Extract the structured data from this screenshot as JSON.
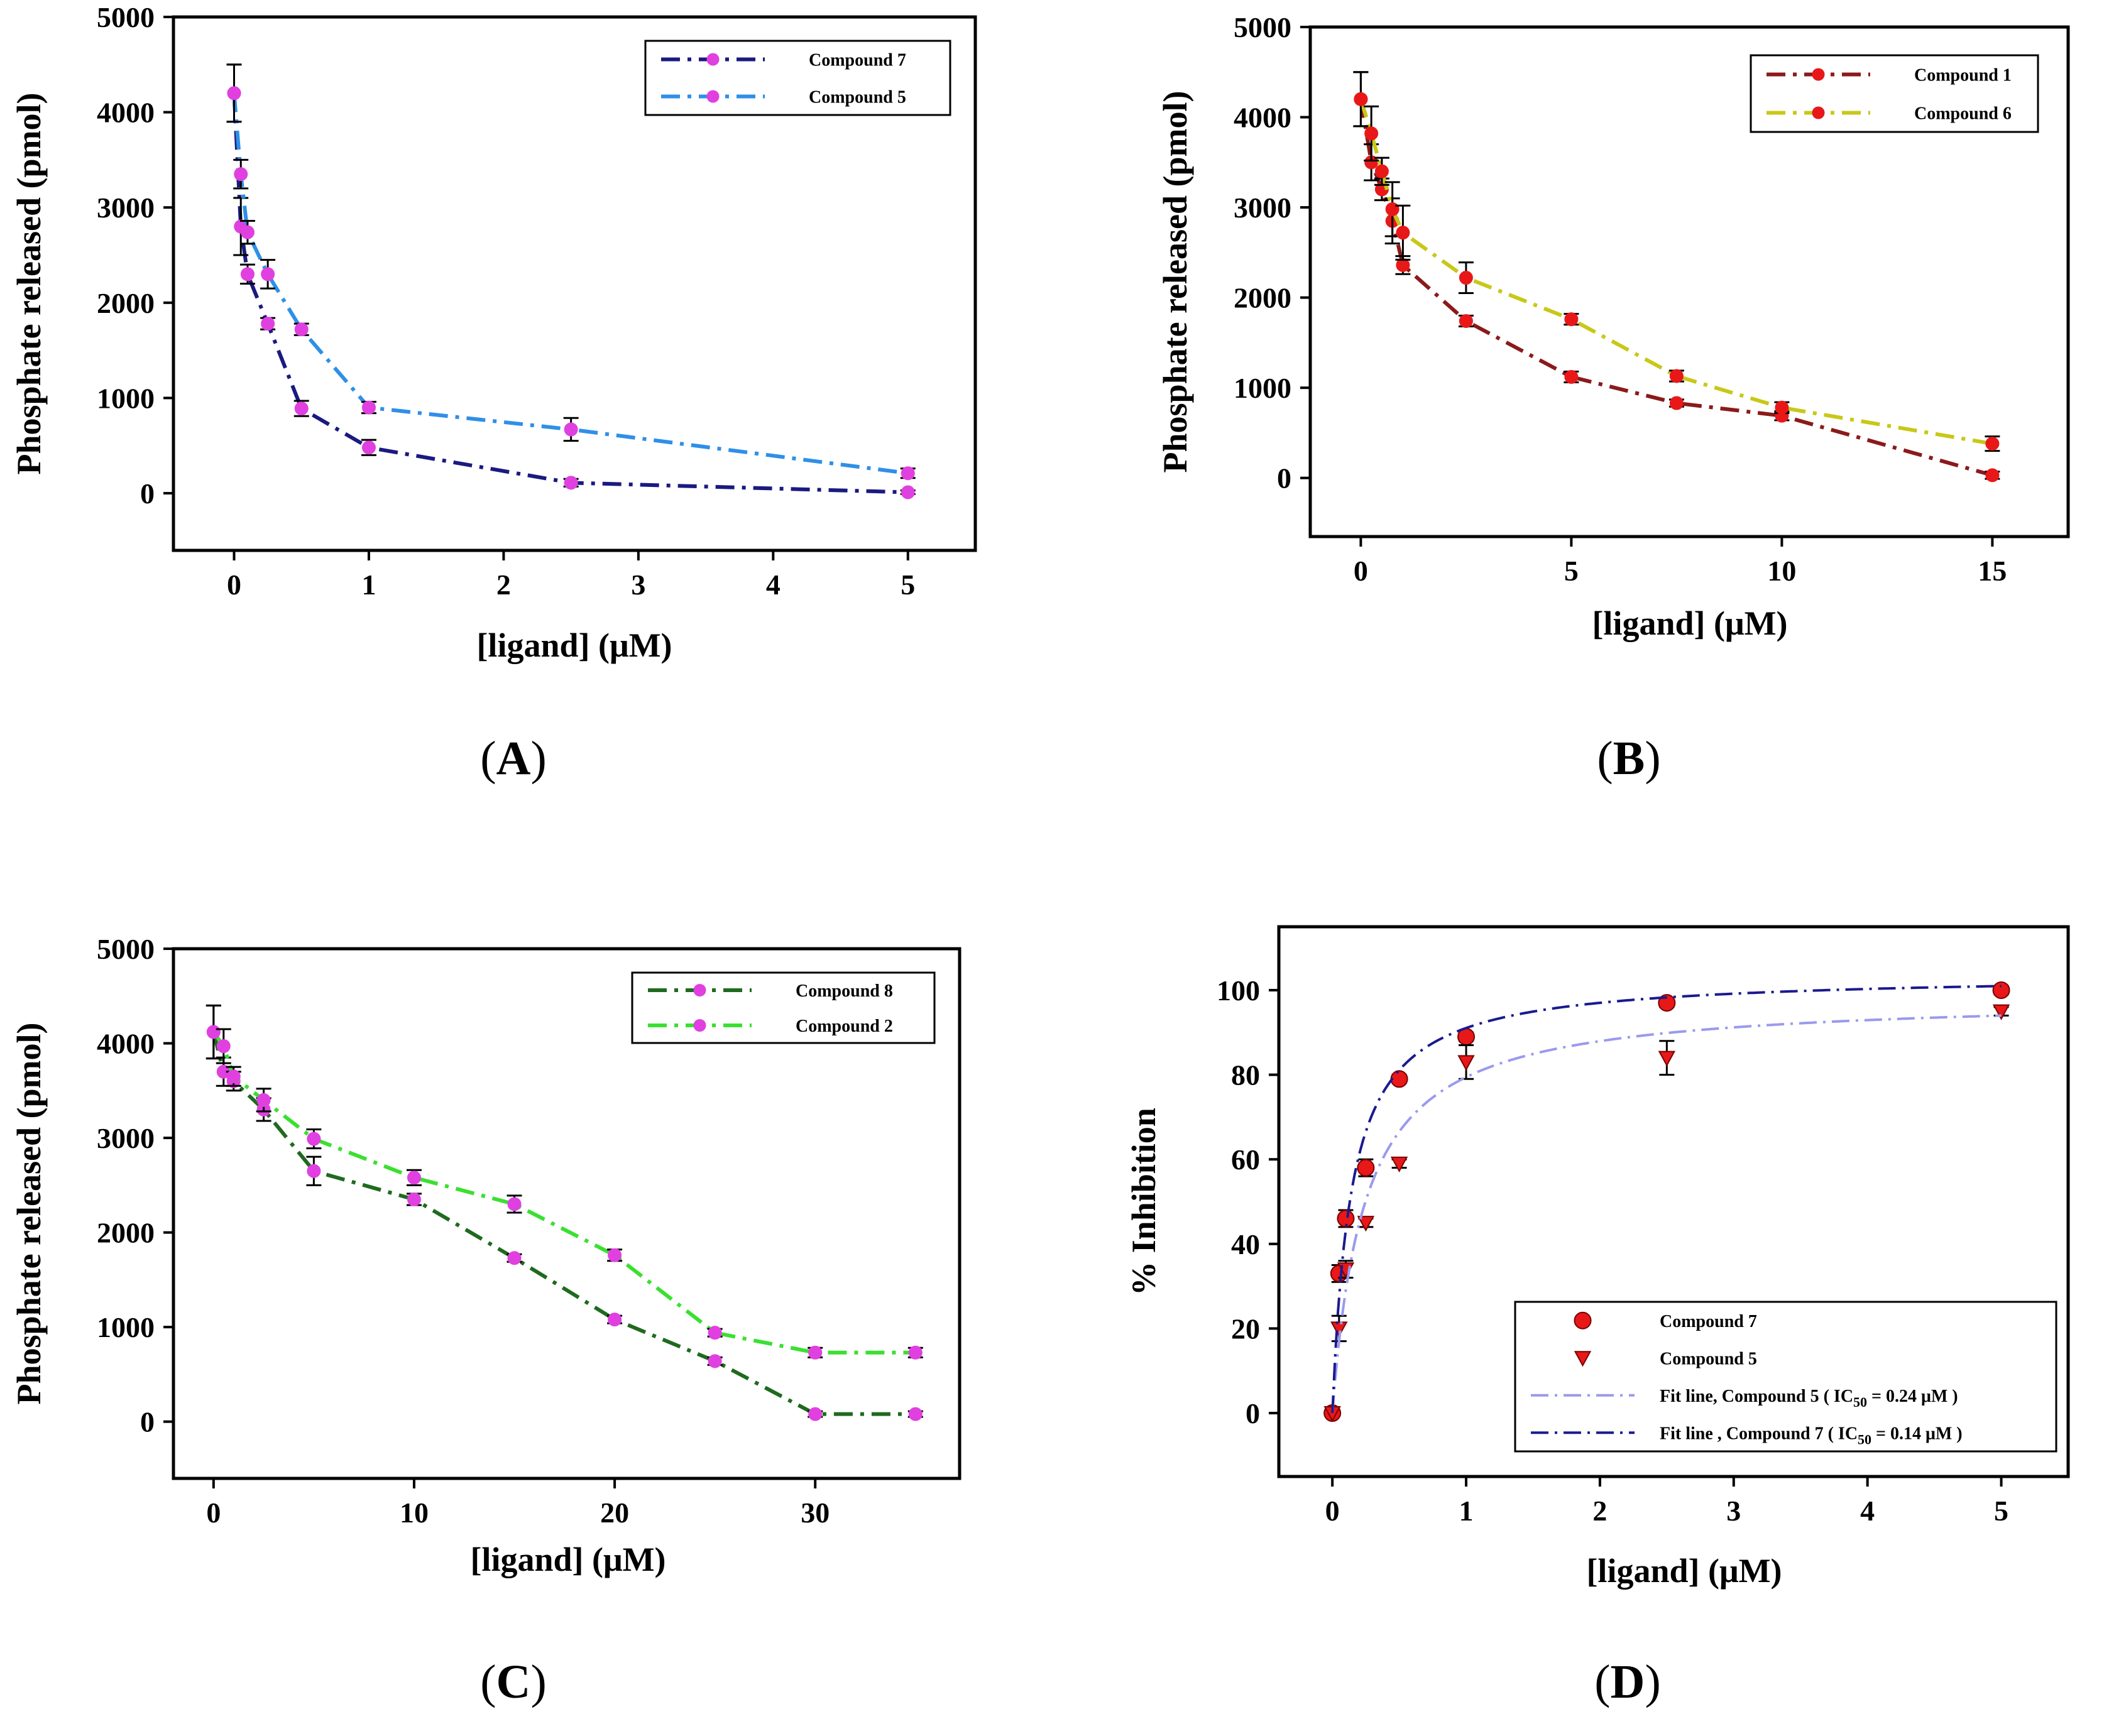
{
  "chart_data": [
    {
      "id": "A",
      "panel_label": "A",
      "type": "line",
      "xlabel": "[ligand] (μM)",
      "ylabel": "Phosphate released (pmol)",
      "xlim": [
        -0.45,
        5.5
      ],
      "ylim": [
        -600,
        5000
      ],
      "xticks": [
        0,
        1,
        2,
        3,
        4,
        5
      ],
      "yticks": [
        0,
        1000,
        2000,
        3000,
        4000,
        5000
      ],
      "legend_position": "top-right",
      "series": [
        {
          "name": "Compound 7",
          "color": "#1a1a80",
          "marker": "circle",
          "marker_color": "#e040e0",
          "x": [
            0,
            0.05,
            0.1,
            0.25,
            0.5,
            1,
            2.5,
            5
          ],
          "y": [
            4200,
            2800,
            2300,
            1780,
            890,
            480,
            110,
            10
          ],
          "err": [
            300,
            300,
            100,
            60,
            80,
            80,
            40,
            20
          ]
        },
        {
          "name": "Compound 5",
          "color": "#2f8fe8",
          "marker": "circle",
          "marker_color": "#e040e0",
          "x": [
            0,
            0.05,
            0.1,
            0.25,
            0.5,
            1,
            2.5,
            5
          ],
          "y": [
            4200,
            3350,
            2740,
            2300,
            1720,
            900,
            670,
            210
          ],
          "err": [
            300,
            150,
            120,
            150,
            60,
            60,
            120,
            50
          ]
        }
      ]
    },
    {
      "id": "B",
      "panel_label": "B",
      "type": "line",
      "xlabel": "[ligand] (μM)",
      "ylabel": "Phosphate released (pmol)",
      "xlim": [
        -1.2,
        16.8
      ],
      "ylim": [
        -650,
        5000
      ],
      "xticks": [
        0,
        5,
        10,
        15
      ],
      "yticks": [
        0,
        1000,
        2000,
        3000,
        4000,
        5000
      ],
      "legend_position": "top-right",
      "series": [
        {
          "name": "Compound 1",
          "color": "#8b1a1a",
          "marker": "circle",
          "marker_color": "#e81818",
          "x": [
            0,
            0.25,
            0.5,
            0.75,
            1,
            2.5,
            5,
            7.5,
            10,
            15
          ],
          "y": [
            4200,
            3500,
            3200,
            2850,
            2360,
            1740,
            1120,
            830,
            690,
            30
          ],
          "err": [
            300,
            200,
            120,
            250,
            100,
            60,
            60,
            40,
            50,
            40
          ]
        },
        {
          "name": "Compound 6",
          "color": "#c8c818",
          "marker": "circle",
          "marker_color": "#e81818",
          "x": [
            0,
            0.25,
            0.5,
            0.75,
            1,
            2.5,
            5,
            7.5,
            10,
            15
          ],
          "y": [
            4200,
            3820,
            3400,
            2980,
            2720,
            2220,
            1760,
            1130,
            780,
            380
          ],
          "err": [
            300,
            300,
            150,
            300,
            300,
            170,
            60,
            60,
            60,
            80
          ]
        }
      ]
    },
    {
      "id": "C",
      "panel_label": "C",
      "type": "line",
      "xlabel": "[ligand] (μM)",
      "ylabel": "Phosphate released (pmol)",
      "xlim": [
        -2.0,
        37.2
      ],
      "ylim": [
        -600,
        5000
      ],
      "xticks": [
        0,
        10,
        20,
        30
      ],
      "yticks": [
        0,
        1000,
        2000,
        3000,
        4000,
        5000
      ],
      "legend_position": "top-right",
      "series": [
        {
          "name": "Compound 8",
          "color": "#1f6a1f",
          "marker": "circle",
          "marker_color": "#e040e0",
          "x": [
            0,
            0.5,
            1,
            2.5,
            5,
            10,
            15,
            20,
            25,
            30,
            35
          ],
          "y": [
            4120,
            3700,
            3600,
            3300,
            2650,
            2350,
            1730,
            1080,
            640,
            80,
            80
          ],
          "err": [
            280,
            150,
            100,
            120,
            150,
            60,
            40,
            40,
            40,
            30,
            30
          ]
        },
        {
          "name": "Compound 2",
          "color": "#3ae030",
          "marker": "circle",
          "marker_color": "#e040e0",
          "x": [
            0,
            0.5,
            1,
            2.5,
            5,
            10,
            15,
            20,
            25,
            30,
            35
          ],
          "y": [
            4120,
            3970,
            3650,
            3400,
            2990,
            2580,
            2300,
            1760,
            940,
            730,
            730
          ],
          "err": [
            280,
            180,
            100,
            120,
            100,
            80,
            90,
            60,
            40,
            50,
            50
          ]
        }
      ]
    },
    {
      "id": "D",
      "panel_label": "D",
      "type": "scatter",
      "xlabel": "[ligand] (μM)",
      "ylabel": "% Inhibition",
      "xlim": [
        -0.4,
        5.5
      ],
      "ylim": [
        -15,
        115
      ],
      "xticks": [
        0,
        1,
        2,
        3,
        4,
        5
      ],
      "yticks": [
        0,
        20,
        40,
        60,
        80,
        100
      ],
      "legend_position": "bottom-right",
      "series": [
        {
          "name": "Compound 7",
          "kind": "points",
          "marker": "circle",
          "marker_color": "#e81818",
          "x": [
            0,
            0.05,
            0.1,
            0.25,
            0.5,
            1,
            2.5,
            5
          ],
          "y": [
            0,
            33,
            46,
            58,
            79,
            89,
            97,
            100
          ],
          "err": [
            0,
            2,
            2,
            2,
            1,
            1,
            1,
            1
          ]
        },
        {
          "name": "Compound 5",
          "kind": "points",
          "marker": "triangle-down",
          "marker_color": "#e81818",
          "x": [
            0,
            0.05,
            0.1,
            0.25,
            0.5,
            1,
            2.5,
            5
          ],
          "y": [
            0,
            20,
            34,
            45,
            59,
            83,
            84,
            95
          ],
          "err": [
            0,
            3,
            2,
            1,
            1,
            4,
            4,
            1
          ]
        },
        {
          "name": "Fit line, Compound 5 ( IC",
          "subscript": "50",
          "suffix": " = 0.24 μM )",
          "kind": "fit",
          "color": "#9a9aee",
          "ymax": 98.5,
          "ic50": 0.24
        },
        {
          "name": "Fit line , Compound 7 ( IC",
          "subscript": "50",
          "suffix": " = 0.14 μM )",
          "kind": "fit",
          "color": "#1a1a90",
          "ymax": 103.8,
          "ic50": 0.14
        }
      ]
    }
  ]
}
